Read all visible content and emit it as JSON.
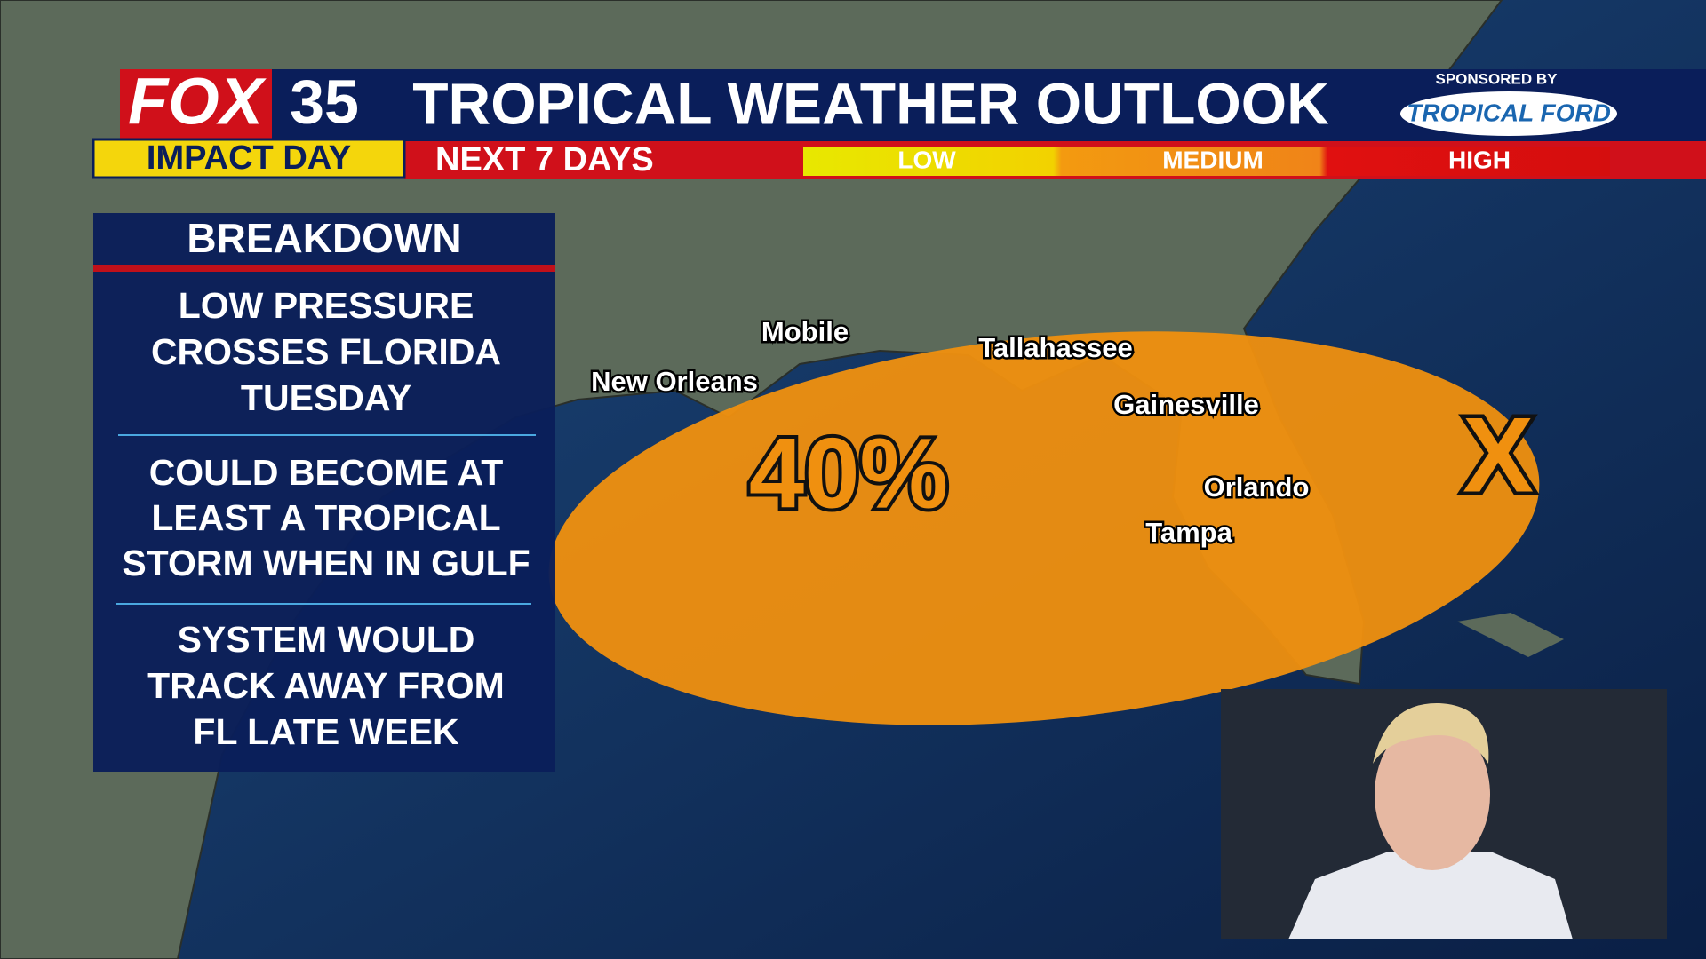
{
  "header": {
    "logo": "FOX",
    "channel": "35",
    "brand": "IMPACT DAY",
    "title": "TROPICAL WEATHER OUTLOOK",
    "timeframe": "NEXT 7 DAYS",
    "legend": [
      "LOW",
      "MEDIUM",
      "HIGH"
    ],
    "sponsor_label": "SPONSORED BY",
    "sponsor": "TROPICAL FORD"
  },
  "breakdown": {
    "title": "BREAKDOWN",
    "items": [
      [
        "LOW PRESSURE",
        "CROSSES FLORIDA",
        "TUESDAY"
      ],
      [
        "COULD BECOME AT",
        "LEAST A TROPICAL",
        "STORM WHEN IN GULF"
      ],
      [
        "SYSTEM WOULD",
        "TRACK AWAY FROM",
        "FL LATE WEEK"
      ]
    ]
  },
  "map": {
    "probability": "40%",
    "center_marker": "X",
    "cities": [
      "Mobile",
      "New Orleans",
      "Tallahassee",
      "Gainesville",
      "Orlando",
      "Tampa"
    ]
  }
}
